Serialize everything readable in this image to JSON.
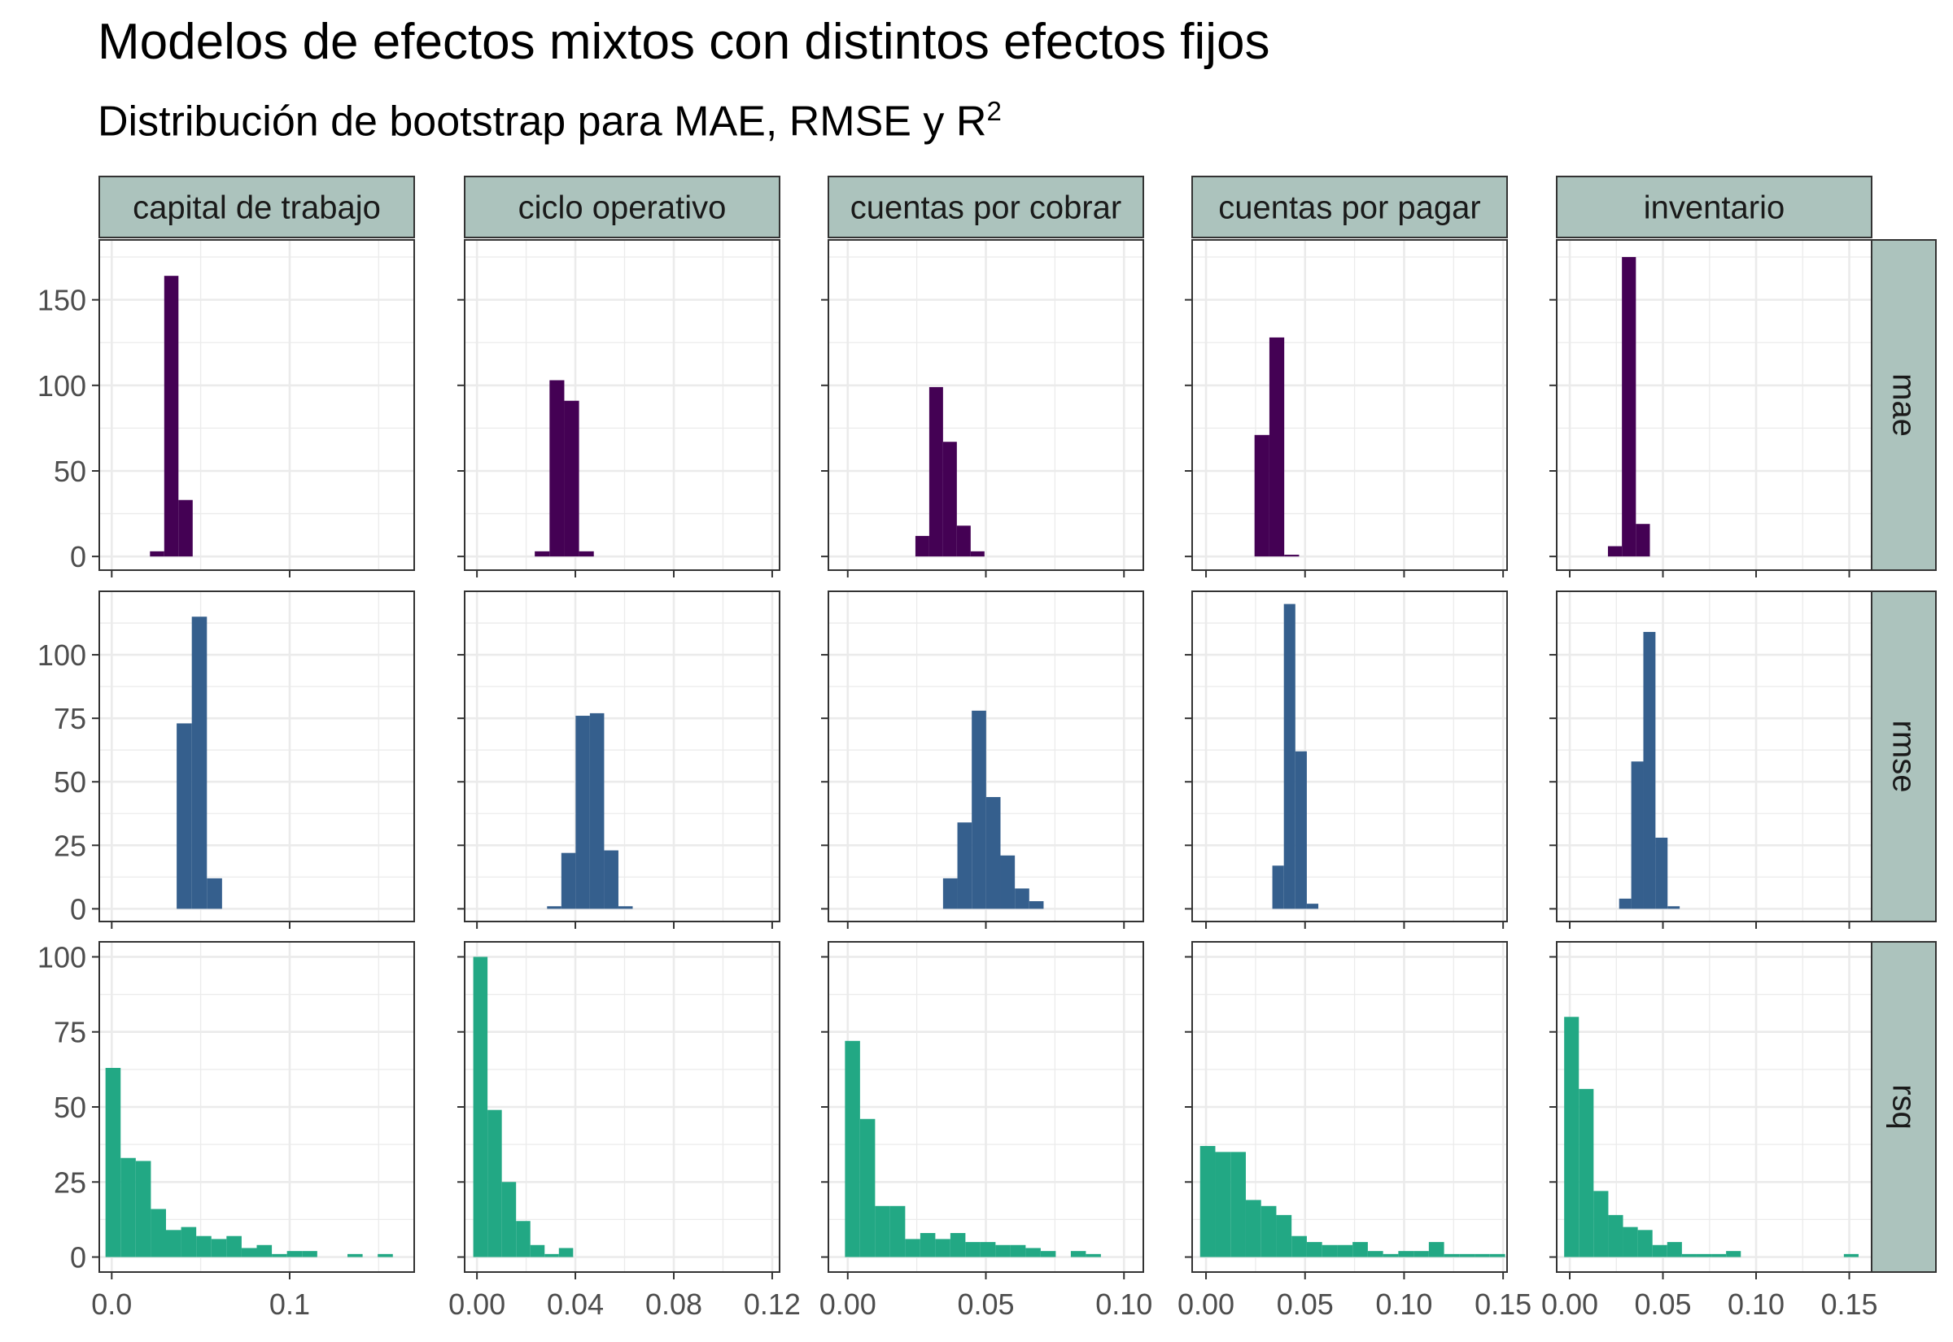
{
  "title": "Modelos de efectos mixtos con distintos efectos fijos",
  "subtitle": {
    "text": "Distribución de bootstrap para MAE, RMSE y R",
    "superscript": "2"
  },
  "colors": {
    "mae": "#440154",
    "rmse": "#355F8D",
    "rsq": "#22A884",
    "strip_fill": "#ACC3BD",
    "grid": "#EBEBEB",
    "panel_border": "#333333",
    "axis_text": "#4D4D4D"
  },
  "chart_data": {
    "type": "histogram",
    "facet_columns": [
      "capital de trabajo",
      "ciclo operativo",
      "cuentas por cobrar",
      "cuentas por pagar",
      "inventario"
    ],
    "facet_rows": [
      "mae",
      "rmse",
      "rsq"
    ],
    "scales": "free",
    "x_axes": [
      {
        "range": [
          -0.007,
          0.17
        ],
        "ticks": [
          0.0,
          0.1
        ],
        "tick_labels": [
          "0.0",
          "0.1"
        ],
        "minor_ticks": [
          0.05,
          0.15
        ]
      },
      {
        "range": [
          -0.005,
          0.123
        ],
        "ticks": [
          0.0,
          0.04,
          0.08,
          0.12
        ],
        "tick_labels": [
          "0.00",
          "0.04",
          "0.08",
          "0.12"
        ],
        "minor_ticks": [
          0.02,
          0.06,
          0.1
        ]
      },
      {
        "range": [
          -0.007,
          0.107
        ],
        "ticks": [
          0.0,
          0.05,
          0.1
        ],
        "tick_labels": [
          "0.00",
          "0.05",
          "0.10"
        ],
        "minor_ticks": [
          0.025,
          0.075
        ]
      },
      {
        "range": [
          -0.007,
          0.152
        ],
        "ticks": [
          0.0,
          0.05,
          0.1,
          0.15
        ],
        "tick_labels": [
          "0.00",
          "0.05",
          "0.10",
          "0.15"
        ],
        "minor_ticks": [
          0.025,
          0.075,
          0.125
        ]
      },
      {
        "range": [
          -0.007,
          0.162
        ],
        "ticks": [
          0.0,
          0.05,
          0.1,
          0.15
        ],
        "tick_labels": [
          "0.00",
          "0.05",
          "0.10",
          "0.15"
        ],
        "minor_ticks": [
          0.025,
          0.075,
          0.125
        ]
      }
    ],
    "y_axes": [
      {
        "range": [
          -8,
          185
        ],
        "ticks": [
          0,
          50,
          100,
          150
        ],
        "tick_labels": [
          "0",
          "50",
          "100",
          "150"
        ],
        "minor_ticks": [
          25,
          75,
          125,
          175
        ]
      },
      {
        "range": [
          -5,
          125
        ],
        "ticks": [
          0,
          25,
          50,
          75,
          100
        ],
        "tick_labels": [
          "0",
          "25",
          "50",
          "75",
          "100"
        ],
        "minor_ticks": [
          12.5,
          37.5,
          62.5,
          87.5,
          112.5
        ]
      },
      {
        "range": [
          -5,
          105
        ],
        "ticks": [
          0,
          25,
          50,
          75,
          100
        ],
        "tick_labels": [
          "0",
          "25",
          "50",
          "75",
          "100"
        ],
        "minor_ticks": [
          12.5,
          37.5,
          62.5,
          87.5
        ]
      }
    ],
    "panels": [
      {
        "row": "mae",
        "column": "capital de trabajo",
        "bin_start": 0.0215,
        "bin_width": 0.008,
        "counts": [
          3,
          164,
          33
        ]
      },
      {
        "row": "mae",
        "column": "ciclo operativo",
        "bin_start": 0.0235,
        "bin_width": 0.006,
        "counts": [
          3,
          103,
          91,
          3
        ]
      },
      {
        "row": "mae",
        "column": "cuentas por cobrar",
        "bin_start": 0.0245,
        "bin_width": 0.005,
        "counts": [
          12,
          99,
          67,
          18,
          3
        ]
      },
      {
        "row": "mae",
        "column": "cuentas por pagar",
        "bin_start": 0.0245,
        "bin_width": 0.0075,
        "counts": [
          71,
          128,
          1
        ]
      },
      {
        "row": "mae",
        "column": "inventario",
        "bin_start": 0.0205,
        "bin_width": 0.0075,
        "counts": [
          6,
          175,
          19
        ]
      },
      {
        "row": "rmse",
        "column": "capital de trabajo",
        "bin_start": 0.0365,
        "bin_width": 0.0085,
        "counts": [
          73,
          115,
          12
        ]
      },
      {
        "row": "rmse",
        "column": "ciclo operativo",
        "bin_start": 0.0285,
        "bin_width": 0.0058,
        "counts": [
          1,
          22,
          76,
          77,
          23,
          1
        ]
      },
      {
        "row": "rmse",
        "column": "cuentas por cobrar",
        "bin_start": 0.0345,
        "bin_width": 0.0052,
        "counts": [
          12,
          34,
          78,
          44,
          21,
          8,
          3
        ]
      },
      {
        "row": "rmse",
        "column": "cuentas por pagar",
        "bin_start": 0.0335,
        "bin_width": 0.0058,
        "counts": [
          17,
          120,
          62,
          2
        ]
      },
      {
        "row": "rmse",
        "column": "inventario",
        "bin_start": 0.0265,
        "bin_width": 0.0065,
        "counts": [
          4,
          58,
          109,
          28,
          1
        ]
      },
      {
        "row": "rsq",
        "column": "capital de trabajo",
        "bin_start": -0.0035,
        "bin_width": 0.0085,
        "counts": [
          63,
          33,
          32,
          16,
          9,
          10,
          7,
          6,
          7,
          3,
          4,
          1,
          2,
          2,
          0,
          0,
          1,
          0,
          1
        ]
      },
      {
        "row": "rsq",
        "column": "ciclo operativo",
        "bin_start": -0.0015,
        "bin_width": 0.0058,
        "counts": [
          100,
          49,
          25,
          12,
          4,
          1,
          3,
          0,
          0,
          0,
          0,
          0,
          0,
          0,
          0,
          0,
          0,
          0,
          0,
          0,
          0
        ]
      },
      {
        "row": "rsq",
        "column": "cuentas por cobrar",
        "bin_start": -0.001,
        "bin_width": 0.00545,
        "counts": [
          72,
          46,
          17,
          17,
          6,
          8,
          6,
          8,
          5,
          5,
          4,
          4,
          3,
          2,
          0,
          2,
          1,
          0,
          0,
          0
        ]
      },
      {
        "row": "rsq",
        "column": "cuentas por pagar",
        "bin_start": -0.003,
        "bin_width": 0.0077,
        "counts": [
          37,
          35,
          35,
          19,
          17,
          14,
          7,
          5,
          4,
          4,
          5,
          2,
          1,
          2,
          2,
          5,
          1,
          1,
          1,
          1
        ]
      },
      {
        "row": "rsq",
        "column": "inventario",
        "bin_start": -0.003,
        "bin_width": 0.0079,
        "counts": [
          80,
          56,
          22,
          14,
          10,
          9,
          4,
          5,
          1,
          1,
          1,
          2,
          0,
          0,
          0,
          0,
          0,
          0,
          0,
          1
        ]
      }
    ]
  }
}
